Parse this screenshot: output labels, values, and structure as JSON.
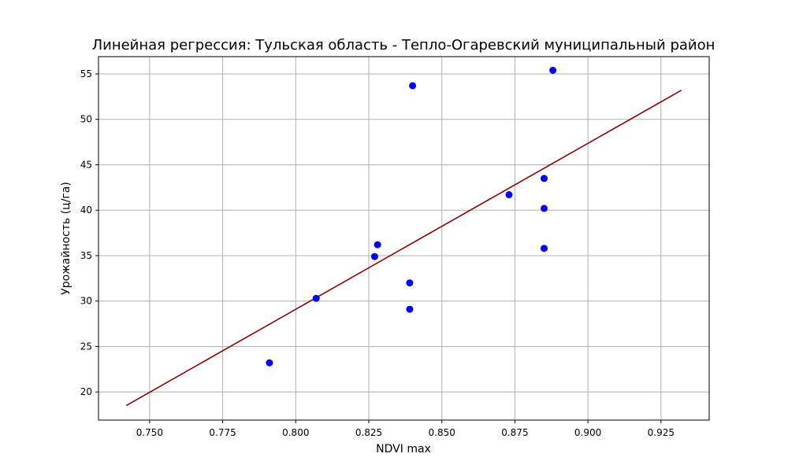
{
  "chart_data": {
    "type": "scatter",
    "title": "Линейная регрессия: Тульская область - Тепло-Огаревский муниципальный район",
    "xlabel": "NDVI max",
    "ylabel": "Урожайность (ц/га)",
    "xlim": [
      0.7325,
      0.9415
    ],
    "ylim": [
      16.9,
      56.9
    ],
    "xticks": [
      0.75,
      0.775,
      0.8,
      0.825,
      0.85,
      0.875,
      0.9,
      0.925
    ],
    "xtick_labels": [
      "0.750",
      "0.775",
      "0.800",
      "0.825",
      "0.850",
      "0.875",
      "0.900",
      "0.925"
    ],
    "yticks": [
      20,
      25,
      30,
      35,
      40,
      45,
      50,
      55
    ],
    "ytick_labels": [
      "20",
      "25",
      "30",
      "35",
      "40",
      "45",
      "50",
      "55"
    ],
    "grid": true,
    "series": [
      {
        "kind": "scatter",
        "color": "#0000ff",
        "points": [
          {
            "x": 0.791,
            "y": 23.2
          },
          {
            "x": 0.807,
            "y": 30.3
          },
          {
            "x": 0.827,
            "y": 34.9
          },
          {
            "x": 0.828,
            "y": 36.2
          },
          {
            "x": 0.839,
            "y": 32.0
          },
          {
            "x": 0.839,
            "y": 29.1
          },
          {
            "x": 0.84,
            "y": 53.7
          },
          {
            "x": 0.873,
            "y": 41.7
          },
          {
            "x": 0.885,
            "y": 43.5
          },
          {
            "x": 0.885,
            "y": 40.2
          },
          {
            "x": 0.885,
            "y": 35.8
          },
          {
            "x": 0.888,
            "y": 55.4
          }
        ]
      },
      {
        "kind": "line",
        "color": "#8b0000",
        "points": [
          {
            "x": 0.742,
            "y": 18.5
          },
          {
            "x": 0.932,
            "y": 53.2
          }
        ]
      }
    ]
  }
}
